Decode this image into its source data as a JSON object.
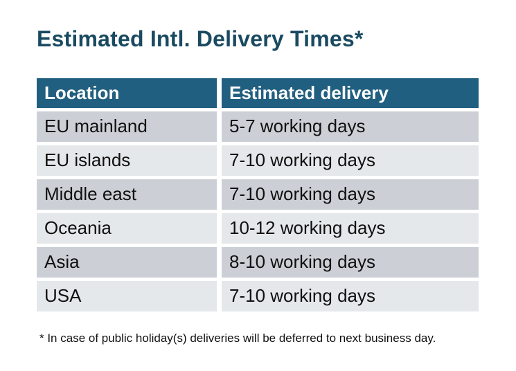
{
  "title": "Estimated Intl. Delivery Times*",
  "table": {
    "columns": [
      "Location",
      "Estimated delivery"
    ],
    "rows": [
      [
        "EU mainland",
        "5-7 working days"
      ],
      [
        "EU islands",
        "7-10 working days"
      ],
      [
        "Middle east",
        "7-10 working days"
      ],
      [
        "Oceania",
        "10-12 working days"
      ],
      [
        "Asia",
        "8-10 working days"
      ],
      [
        "USA",
        "7-10 working days"
      ]
    ]
  },
  "footnote": "* In case of public holiday(s) deliveries will be deferred to next business day.",
  "colors": {
    "header_bg": "#215f80",
    "header_text": "#ffffff",
    "title": "#1a4a61",
    "row_odd": "#ccd0d6",
    "row_even": "#e5e8ea",
    "text": "#101010"
  }
}
